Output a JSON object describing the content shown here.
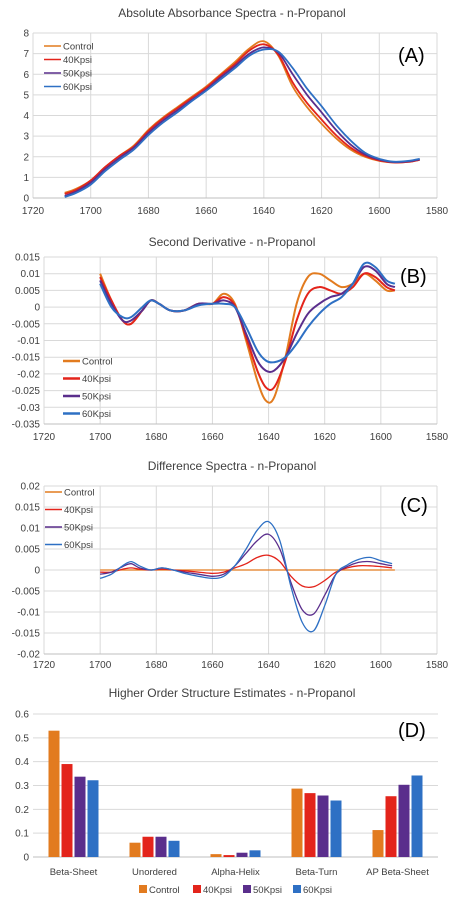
{
  "series_styles": [
    {
      "name": "Control",
      "color": "#e27b1f"
    },
    {
      "name": "40Kpsi",
      "color": "#e3241b"
    },
    {
      "name": "50Kpsi",
      "color": "#5a2e8c"
    },
    {
      "name": "60Kpsi",
      "color": "#2e70c4"
    }
  ],
  "chart_data": [
    {
      "type": "line",
      "panel_label": "(A)",
      "title": "Absolute Absorbance Spectra - n-Propanol",
      "xlim": [
        1720,
        1580
      ],
      "ylim": [
        0,
        8
      ],
      "xticks": [
        1720,
        1700,
        1680,
        1660,
        1640,
        1620,
        1600,
        1580
      ],
      "yticks": [
        0,
        1,
        2,
        3,
        4,
        5,
        6,
        7,
        8
      ],
      "grid": true,
      "legend_position": "top-left",
      "series": [
        {
          "name": "Control",
          "x": [
            1709,
            1705,
            1700,
            1695,
            1690,
            1685,
            1680,
            1675,
            1670,
            1665,
            1660,
            1655,
            1650,
            1645,
            1640,
            1635,
            1630,
            1625,
            1620,
            1615,
            1610,
            1605,
            1600,
            1595,
            1590,
            1586
          ],
          "y": [
            0.25,
            0.45,
            0.85,
            1.5,
            2.05,
            2.55,
            3.3,
            3.9,
            4.4,
            4.9,
            5.4,
            6.0,
            6.6,
            7.25,
            7.6,
            6.9,
            5.4,
            4.4,
            3.6,
            2.9,
            2.35,
            2.0,
            1.8,
            1.72,
            1.75,
            1.85
          ]
        },
        {
          "name": "40Kpsi",
          "x": [
            1709,
            1705,
            1700,
            1695,
            1690,
            1685,
            1680,
            1675,
            1670,
            1665,
            1660,
            1655,
            1650,
            1645,
            1640,
            1635,
            1630,
            1625,
            1620,
            1615,
            1610,
            1605,
            1600,
            1595,
            1590,
            1586
          ],
          "y": [
            0.2,
            0.4,
            0.85,
            1.5,
            2.05,
            2.5,
            3.25,
            3.85,
            4.35,
            4.85,
            5.35,
            5.95,
            6.5,
            7.15,
            7.45,
            6.95,
            5.6,
            4.6,
            3.8,
            3.05,
            2.45,
            2.05,
            1.82,
            1.72,
            1.75,
            1.85
          ]
        },
        {
          "name": "50Kpsi",
          "x": [
            1709,
            1705,
            1700,
            1695,
            1690,
            1685,
            1680,
            1675,
            1670,
            1665,
            1660,
            1655,
            1650,
            1645,
            1640,
            1635,
            1630,
            1625,
            1620,
            1615,
            1610,
            1605,
            1600,
            1595,
            1590,
            1586
          ],
          "y": [
            0.1,
            0.32,
            0.75,
            1.4,
            1.95,
            2.45,
            3.15,
            3.75,
            4.25,
            4.75,
            5.25,
            5.85,
            6.4,
            7.0,
            7.3,
            7.05,
            6.0,
            5.0,
            4.15,
            3.3,
            2.6,
            2.12,
            1.86,
            1.74,
            1.77,
            1.87
          ]
        },
        {
          "name": "60Kpsi",
          "x": [
            1709,
            1705,
            1700,
            1695,
            1690,
            1685,
            1680,
            1675,
            1670,
            1665,
            1660,
            1655,
            1650,
            1645,
            1640,
            1635,
            1630,
            1625,
            1620,
            1615,
            1610,
            1605,
            1600,
            1595,
            1590,
            1586
          ],
          "y": [
            0.05,
            0.25,
            0.65,
            1.3,
            1.85,
            2.35,
            3.05,
            3.65,
            4.15,
            4.7,
            5.2,
            5.75,
            6.3,
            6.9,
            7.2,
            7.1,
            6.3,
            5.3,
            4.45,
            3.55,
            2.8,
            2.2,
            1.9,
            1.76,
            1.8,
            1.9
          ]
        }
      ]
    },
    {
      "type": "line",
      "panel_label": "(B)",
      "title": "Second Derivative - n-Propanol",
      "xlim": [
        1720,
        1580
      ],
      "ylim": [
        -0.035,
        0.015
      ],
      "xticks": [
        1720,
        1700,
        1680,
        1660,
        1640,
        1620,
        1600,
        1580
      ],
      "yticks": [
        -0.035,
        -0.03,
        -0.025,
        -0.02,
        -0.015,
        -0.01,
        -0.005,
        0,
        0.005,
        0.01,
        0.015
      ],
      "ytick_labels": [
        "-0.035",
        "-0.03",
        "-0.025",
        "-0.02",
        "-0.015",
        "-0.01",
        "-0.005",
        "0",
        "0.005",
        "0.01",
        "0.015"
      ],
      "grid": true,
      "legend_position": "bottom-left",
      "series": [
        {
          "name": "Control",
          "x": [
            1700,
            1696,
            1692,
            1689,
            1685,
            1682,
            1679,
            1675,
            1670,
            1665,
            1660,
            1656,
            1652,
            1648,
            1644,
            1641,
            1638,
            1634,
            1630,
            1626,
            1622,
            1618,
            1614,
            1610,
            1606,
            1602,
            1598,
            1595
          ],
          "y": [
            0.01,
            0.002,
            -0.004,
            -0.005,
            -0.001,
            0.002,
            0.001,
            -0.001,
            -0.001,
            0.001,
            0.001,
            0.004,
            0.001,
            -0.01,
            -0.022,
            -0.028,
            -0.027,
            -0.015,
            0.001,
            0.009,
            0.01,
            0.008,
            0.006,
            0.007,
            0.01,
            0.008,
            0.005,
            0.005
          ]
        },
        {
          "name": "40Kpsi",
          "x": [
            1700,
            1696,
            1692,
            1689,
            1685,
            1682,
            1679,
            1675,
            1670,
            1665,
            1660,
            1656,
            1652,
            1648,
            1644,
            1641,
            1638,
            1634,
            1630,
            1626,
            1622,
            1618,
            1614,
            1610,
            1606,
            1602,
            1598,
            1595
          ],
          "y": [
            0.009,
            0.002,
            -0.004,
            -0.005,
            -0.001,
            0.002,
            0.001,
            -0.001,
            -0.001,
            0.001,
            0.001,
            0.003,
            0.0005,
            -0.009,
            -0.019,
            -0.024,
            -0.024,
            -0.016,
            -0.004,
            0.004,
            0.006,
            0.005,
            0.004,
            0.006,
            0.01,
            0.009,
            0.006,
            0.005
          ]
        },
        {
          "name": "50Kpsi",
          "x": [
            1700,
            1696,
            1692,
            1689,
            1685,
            1682,
            1679,
            1675,
            1670,
            1665,
            1660,
            1656,
            1652,
            1648,
            1644,
            1641,
            1638,
            1634,
            1630,
            1626,
            1622,
            1618,
            1614,
            1610,
            1606,
            1602,
            1598,
            1595
          ],
          "y": [
            0.008,
            0.001,
            -0.004,
            -0.004,
            -0.001,
            0.002,
            0.001,
            -0.001,
            -0.001,
            0.001,
            0.001,
            0.002,
            0.0,
            -0.008,
            -0.016,
            -0.019,
            -0.019,
            -0.015,
            -0.008,
            -0.002,
            0.001,
            0.003,
            0.004,
            0.007,
            0.012,
            0.011,
            0.007,
            0.006
          ]
        },
        {
          "name": "60Kpsi",
          "x": [
            1700,
            1696,
            1692,
            1689,
            1685,
            1682,
            1679,
            1675,
            1670,
            1665,
            1660,
            1656,
            1652,
            1648,
            1644,
            1641,
            1638,
            1634,
            1630,
            1626,
            1622,
            1618,
            1614,
            1610,
            1606,
            1602,
            1598,
            1595
          ],
          "y": [
            0.007,
            0.0,
            -0.003,
            -0.003,
            0.0,
            0.002,
            0.001,
            -0.001,
            -0.001,
            0.0005,
            0.001,
            0.001,
            0.0,
            -0.006,
            -0.013,
            -0.016,
            -0.0165,
            -0.015,
            -0.011,
            -0.006,
            -0.002,
            0.001,
            0.003,
            0.007,
            0.013,
            0.012,
            0.008,
            0.007
          ]
        }
      ]
    },
    {
      "type": "line",
      "panel_label": "(C)",
      "title": "Difference Spectra - n-Propanol",
      "xlim": [
        1720,
        1580
      ],
      "ylim": [
        -0.02,
        0.02
      ],
      "xticks": [
        1720,
        1700,
        1680,
        1660,
        1640,
        1620,
        1600,
        1580
      ],
      "yticks": [
        -0.02,
        -0.015,
        -0.01,
        -0.005,
        0,
        0.005,
        0.01,
        0.015,
        0.02
      ],
      "ytick_labels": [
        "-0.02",
        "-0.015",
        "-0.01",
        "-0.005",
        "0",
        "0.005",
        "0.01",
        "0.015",
        "0.02"
      ],
      "grid": true,
      "legend_position": "top-left",
      "series": [
        {
          "name": "Control",
          "x": [
            1700,
            1680,
            1660,
            1640,
            1620,
            1600,
            1595
          ],
          "y": [
            0,
            0,
            0,
            0,
            0,
            0,
            0
          ]
        },
        {
          "name": "40Kpsi",
          "x": [
            1700,
            1696,
            1692,
            1689,
            1686,
            1682,
            1678,
            1674,
            1670,
            1665,
            1660,
            1656,
            1652,
            1648,
            1644,
            1640,
            1636,
            1632,
            1628,
            1624,
            1620,
            1616,
            1612,
            1608,
            1604,
            1600,
            1596
          ],
          "y": [
            -0.0005,
            -0.0005,
            0.0002,
            0.0005,
            0.0002,
            0,
            0.0002,
            0,
            -0.0002,
            -0.0005,
            -0.0008,
            -0.0005,
            0.0005,
            0.0015,
            0.003,
            0.0035,
            0.002,
            -0.0015,
            -0.0038,
            -0.004,
            -0.0025,
            -0.0005,
            0.0005,
            0.001,
            0.001,
            0.0008,
            0.0005
          ]
        },
        {
          "name": "50Kpsi",
          "x": [
            1700,
            1696,
            1692,
            1689,
            1686,
            1682,
            1678,
            1674,
            1670,
            1665,
            1660,
            1656,
            1652,
            1648,
            1644,
            1640,
            1636,
            1632,
            1628,
            1624,
            1620,
            1616,
            1612,
            1608,
            1604,
            1600,
            1596
          ],
          "y": [
            -0.001,
            -0.0005,
            0.0008,
            0.0015,
            0.0005,
            0,
            0.0005,
            0,
            -0.0005,
            -0.001,
            -0.0015,
            -0.001,
            0.001,
            0.004,
            0.007,
            0.0085,
            0.005,
            -0.003,
            -0.0095,
            -0.0105,
            -0.006,
            -0.001,
            0.0008,
            0.0018,
            0.002,
            0.0015,
            0.001
          ]
        },
        {
          "name": "60Kpsi",
          "x": [
            1700,
            1696,
            1692,
            1689,
            1686,
            1682,
            1678,
            1674,
            1670,
            1665,
            1660,
            1656,
            1652,
            1648,
            1644,
            1640,
            1636,
            1632,
            1628,
            1624,
            1620,
            1616,
            1612,
            1608,
            1604,
            1600,
            1596
          ],
          "y": [
            -0.002,
            -0.001,
            0.001,
            0.002,
            0.001,
            0,
            0.0005,
            0,
            -0.0008,
            -0.0015,
            -0.002,
            -0.0015,
            0.001,
            0.005,
            0.0095,
            0.0115,
            0.007,
            -0.004,
            -0.0125,
            -0.0145,
            -0.0085,
            -0.001,
            0.0012,
            0.0025,
            0.003,
            0.0022,
            0.0015
          ]
        }
      ]
    },
    {
      "type": "bar",
      "panel_label": "(D)",
      "title": "Higher Order Structure Estimates - n-Propanol",
      "categories": [
        "Beta-Sheet",
        "Unordered",
        "Alpha-Helix",
        "Beta-Turn",
        "AP Beta-Sheet"
      ],
      "ylim": [
        0,
        0.6
      ],
      "yticks": [
        0,
        0.1,
        0.2,
        0.3,
        0.4,
        0.5,
        0.6
      ],
      "ytick_labels": [
        "0",
        "0.1",
        "0.2",
        "0.3",
        "0.4",
        "0.5",
        "0.6"
      ],
      "grid": true,
      "legend_position": "bottom",
      "series": [
        {
          "name": "Control",
          "values": [
            0.53,
            0.06,
            0.012,
            0.287,
            0.113
          ]
        },
        {
          "name": "40Kpsi",
          "values": [
            0.39,
            0.085,
            0.008,
            0.268,
            0.255
          ]
        },
        {
          "name": "50Kpsi",
          "values": [
            0.337,
            0.085,
            0.018,
            0.258,
            0.303
          ]
        },
        {
          "name": "60Kpsi",
          "values": [
            0.322,
            0.068,
            0.028,
            0.237,
            0.342
          ]
        }
      ]
    }
  ]
}
